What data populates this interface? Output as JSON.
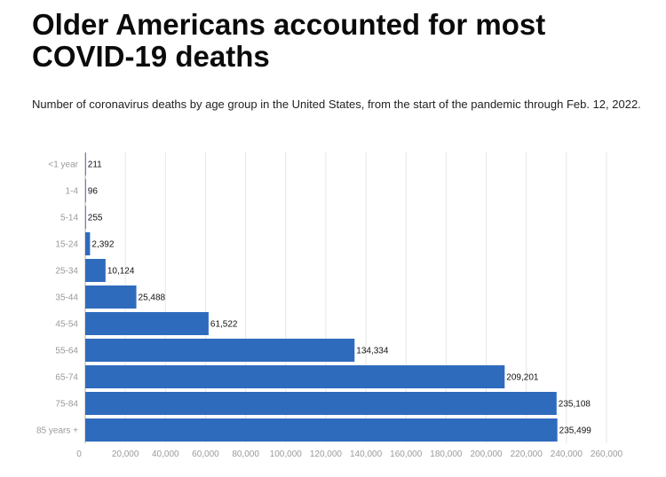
{
  "title": "Older Americans accounted for most COVID-19 deaths",
  "subtitle": "Number of coronavirus deaths by age group in the United States, from the start of the pandemic through Feb. 12, 2022.",
  "colors": {
    "bar": "#2f6bbd",
    "grid": "#e6e6e6",
    "axis": "#b0b0b0"
  },
  "chart_data": {
    "type": "bar",
    "orientation": "horizontal",
    "title": "Older Americans accounted for most COVID-19 deaths",
    "subtitle": "Number of coronavirus deaths by age group in the United States, from the start of the pandemic through Feb. 12, 2022.",
    "xlabel": "",
    "ylabel": "",
    "categories": [
      "<1 year",
      "1-4",
      "5-14",
      "15-24",
      "25-34",
      "35-44",
      "45-54",
      "55-64",
      "65-74",
      "75-84",
      "85 years +"
    ],
    "values": [
      211,
      96,
      255,
      2392,
      10124,
      25488,
      61522,
      134334,
      209201,
      235108,
      235499
    ],
    "value_labels": [
      "211",
      "96",
      "255",
      "2,392",
      "10,124",
      "25,488",
      "61,522",
      "134,334",
      "209,201",
      "235,108",
      "235,499"
    ],
    "xlim": [
      0,
      260000
    ],
    "x_ticks": [
      0,
      20000,
      40000,
      60000,
      80000,
      100000,
      120000,
      140000,
      160000,
      180000,
      200000,
      220000,
      240000,
      260000
    ],
    "x_tick_labels": [
      "0",
      "20,000",
      "40,000",
      "60,000",
      "80,000",
      "100,000",
      "120,000",
      "140,000",
      "160,000",
      "180,000",
      "200,000",
      "220,000",
      "240,000",
      "260,000"
    ],
    "grid": true,
    "legend": "none"
  }
}
